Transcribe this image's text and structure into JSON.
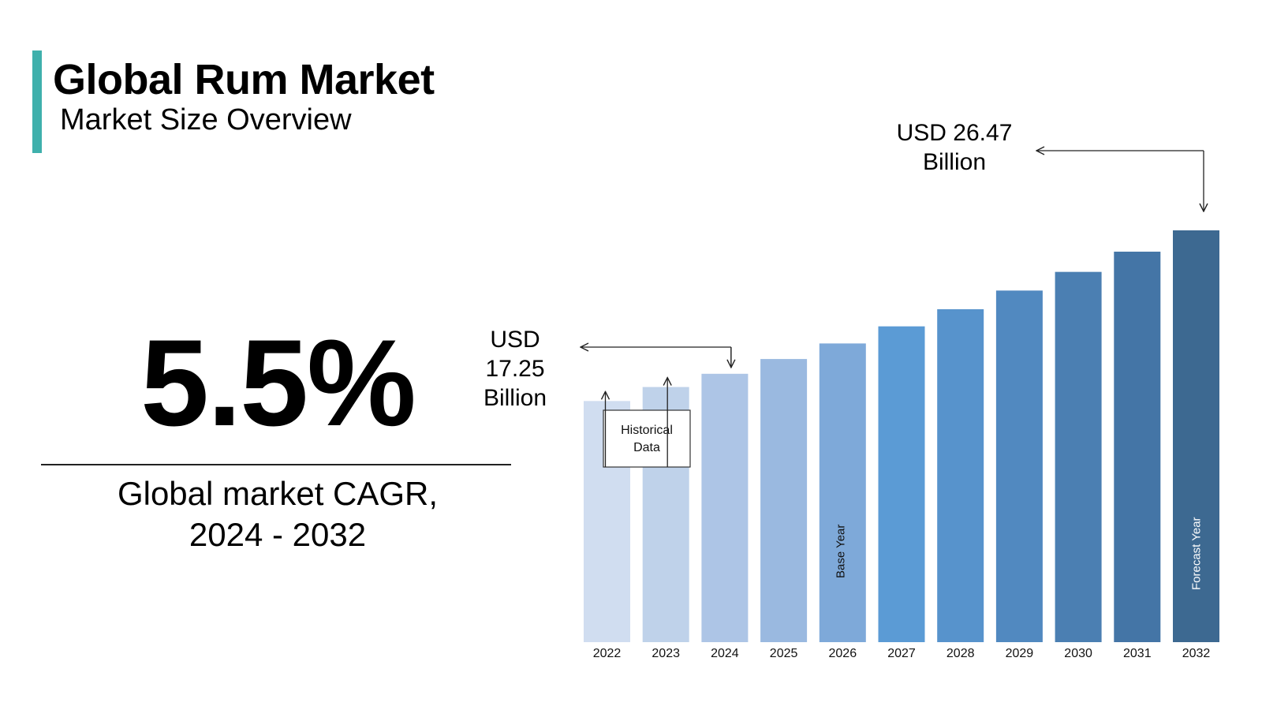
{
  "header": {
    "title": "Global Rum Market",
    "subtitle": "Market Size Overview"
  },
  "cagr": {
    "value": "5.5%",
    "caption_line1": "Global market CAGR,",
    "caption_line2": "2024 - 2032"
  },
  "annotations": {
    "start_value": {
      "line1": "USD",
      "line2": "17.25",
      "line3": "Billion"
    },
    "end_value": {
      "line1": "USD 26.47",
      "line2": "Billion"
    },
    "historical_line1": "Historical",
    "historical_line2": "Data",
    "base_year": "Base Year",
    "forecast_year": "Forecast Year"
  },
  "colors": {
    "accent": "#3fb0ac",
    "bars": [
      "#d0ddf0",
      "#bfd2ea",
      "#adc5e6",
      "#9ab9e0",
      "#7ea9d9",
      "#5b9bd5",
      "#5793cc",
      "#5189c0",
      "#4b7fb2",
      "#4475a6",
      "#3d6991"
    ]
  },
  "chart_data": {
    "type": "bar",
    "categories": [
      "2022",
      "2023",
      "2024",
      "2025",
      "2026",
      "2027",
      "2028",
      "2029",
      "2030",
      "2031",
      "2032"
    ],
    "values": [
      15.5,
      16.4,
      17.25,
      18.2,
      19.2,
      20.3,
      21.4,
      22.6,
      23.8,
      25.1,
      26.47
    ],
    "title": "Global Rum Market",
    "xlabel": "",
    "ylabel": "",
    "ylim": [
      0,
      26.47
    ],
    "grid": false,
    "legend": "none"
  }
}
